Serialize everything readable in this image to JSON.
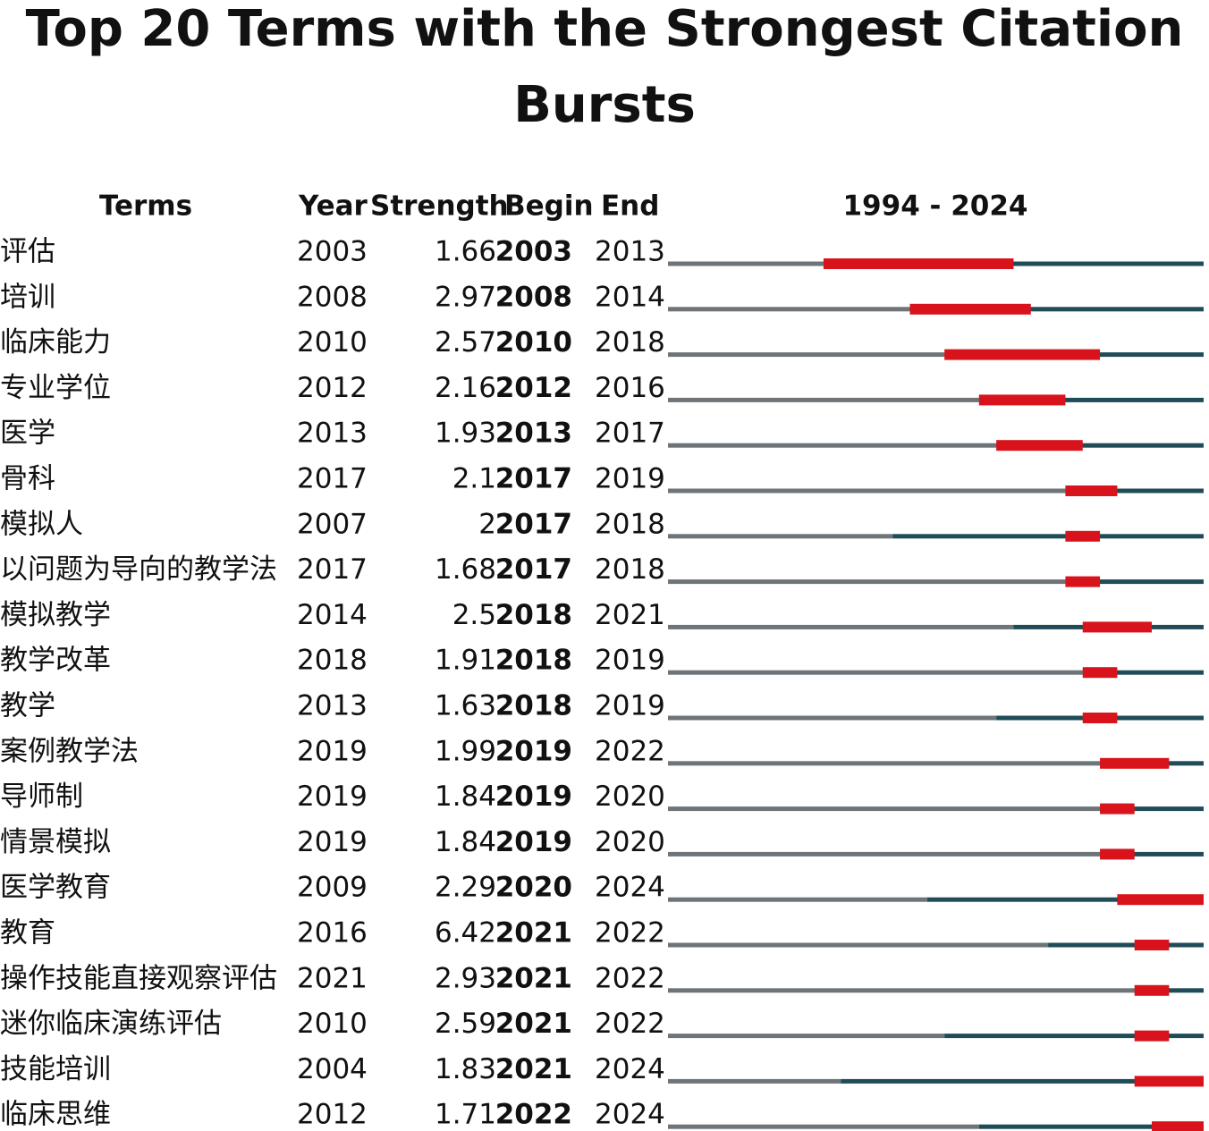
{
  "title": "Top 20 Terms with the Strongest Citation Bursts",
  "columns": {
    "term": "Terms",
    "year": "Year",
    "strength": "Strength",
    "begin": "Begin",
    "end": "End"
  },
  "timeline": {
    "label": "1994 - 2024",
    "start": 1994,
    "end": 2024
  },
  "rows": [
    {
      "term": "评估",
      "year": 2003,
      "strength": 1.66,
      "begin": 2003,
      "end": 2013
    },
    {
      "term": "培训",
      "year": 2008,
      "strength": 2.97,
      "begin": 2008,
      "end": 2014
    },
    {
      "term": "临床能力",
      "year": 2010,
      "strength": 2.57,
      "begin": 2010,
      "end": 2018
    },
    {
      "term": "专业学位",
      "year": 2012,
      "strength": 2.16,
      "begin": 2012,
      "end": 2016
    },
    {
      "term": "医学",
      "year": 2013,
      "strength": 1.93,
      "begin": 2013,
      "end": 2017
    },
    {
      "term": "骨科",
      "year": 2017,
      "strength": 2.1,
      "begin": 2017,
      "end": 2019
    },
    {
      "term": "模拟人",
      "year": 2007,
      "strength": 2,
      "begin": 2017,
      "end": 2018
    },
    {
      "term": "以问题为导向的教学法",
      "year": 2017,
      "strength": 1.68,
      "begin": 2017,
      "end": 2018
    },
    {
      "term": "模拟教学",
      "year": 2014,
      "strength": 2.5,
      "begin": 2018,
      "end": 2021
    },
    {
      "term": "教学改革",
      "year": 2018,
      "strength": 1.91,
      "begin": 2018,
      "end": 2019
    },
    {
      "term": "教学",
      "year": 2013,
      "strength": 1.63,
      "begin": 2018,
      "end": 2019
    },
    {
      "term": "案例教学法",
      "year": 2019,
      "strength": 1.99,
      "begin": 2019,
      "end": 2022
    },
    {
      "term": "导师制",
      "year": 2019,
      "strength": 1.84,
      "begin": 2019,
      "end": 2020
    },
    {
      "term": "情景模拟",
      "year": 2019,
      "strength": 1.84,
      "begin": 2019,
      "end": 2020
    },
    {
      "term": "医学教育",
      "year": 2009,
      "strength": 2.29,
      "begin": 2020,
      "end": 2024
    },
    {
      "term": "教育",
      "year": 2016,
      "strength": 6.42,
      "begin": 2021,
      "end": 2022
    },
    {
      "term": "操作技能直接观察评估",
      "year": 2021,
      "strength": 2.93,
      "begin": 2021,
      "end": 2022
    },
    {
      "term": "迷你临床演练评估",
      "year": 2010,
      "strength": 2.59,
      "begin": 2021,
      "end": 2022
    },
    {
      "term": "技能培训",
      "year": 2004,
      "strength": 1.83,
      "begin": 2021,
      "end": 2024
    },
    {
      "term": "临床思维",
      "year": 2012,
      "strength": 1.71,
      "begin": 2022,
      "end": 2024
    }
  ]
}
